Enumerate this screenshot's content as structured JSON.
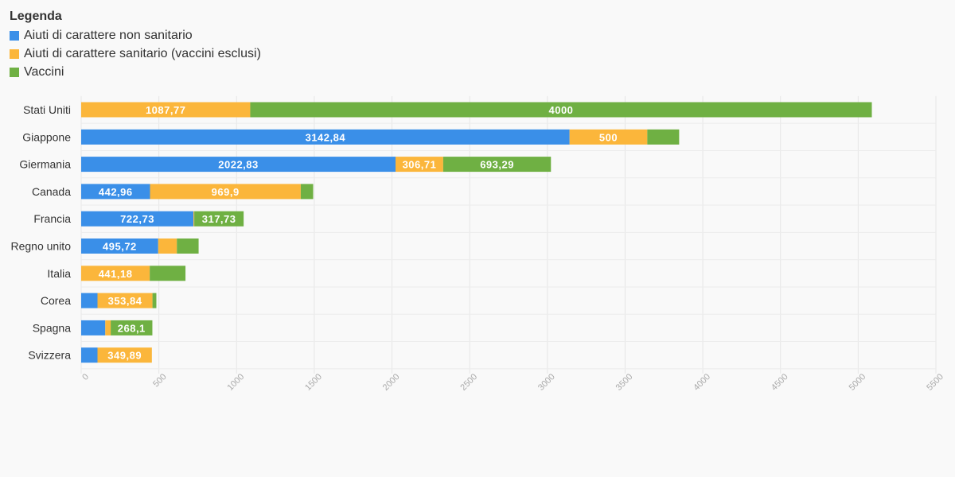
{
  "legend": {
    "title": "Legenda",
    "items": [
      {
        "label": "Aiuti di carattere non sanitario",
        "color": "#3a8fe8"
      },
      {
        "label": "Aiuti di carattere sanitario (vaccini esclusi)",
        "color": "#fbb63b"
      },
      {
        "label": "Vaccini",
        "color": "#6fb043"
      }
    ]
  },
  "chart_data": {
    "type": "bar",
    "orientation": "horizontal",
    "stacked": true,
    "categories": [
      "Stati Uniti",
      "Giappone",
      "Giermania",
      "Canada",
      "Francia",
      "Regno unito",
      "Italia",
      "Corea",
      "Spagna",
      "Svizzera"
    ],
    "series": [
      {
        "name": "Aiuti di carattere non sanitario",
        "color": "#3a8fe8",
        "values": [
          0,
          3142.84,
          2022.83,
          442.96,
          722.73,
          495.72,
          0,
          105,
          155,
          105
        ],
        "labels": [
          "",
          "3142,84",
          "2022,83",
          "442,96",
          "722,73",
          "495,72",
          "",
          "",
          "",
          ""
        ]
      },
      {
        "name": "Aiuti di carattere sanitario (vaccini esclusi)",
        "color": "#fbb63b",
        "values": [
          1087.77,
          500,
          306.71,
          969.9,
          5,
          120,
          441.18,
          353.84,
          35,
          349.89
        ],
        "labels": [
          "1087,77",
          "500",
          "306,71",
          "969,9",
          "",
          "",
          "441,18",
          "353,84",
          "",
          "349,89"
        ]
      },
      {
        "name": "Vaccini",
        "color": "#6fb043",
        "values": [
          4000,
          205,
          693.29,
          80,
          317.73,
          140,
          230,
          25,
          268.1,
          0
        ],
        "labels": [
          "4000",
          "",
          "693,29",
          "",
          "317,73",
          "",
          "",
          "",
          "268,1",
          ""
        ]
      }
    ],
    "xlim": [
      0,
      5500
    ],
    "xticks": [
      "0",
      "500",
      "1000",
      "1500",
      "2000",
      "2500",
      "3000",
      "3500",
      "4000",
      "4500",
      "5000",
      "5500"
    ],
    "grid": true,
    "legend_position": "top-left"
  }
}
